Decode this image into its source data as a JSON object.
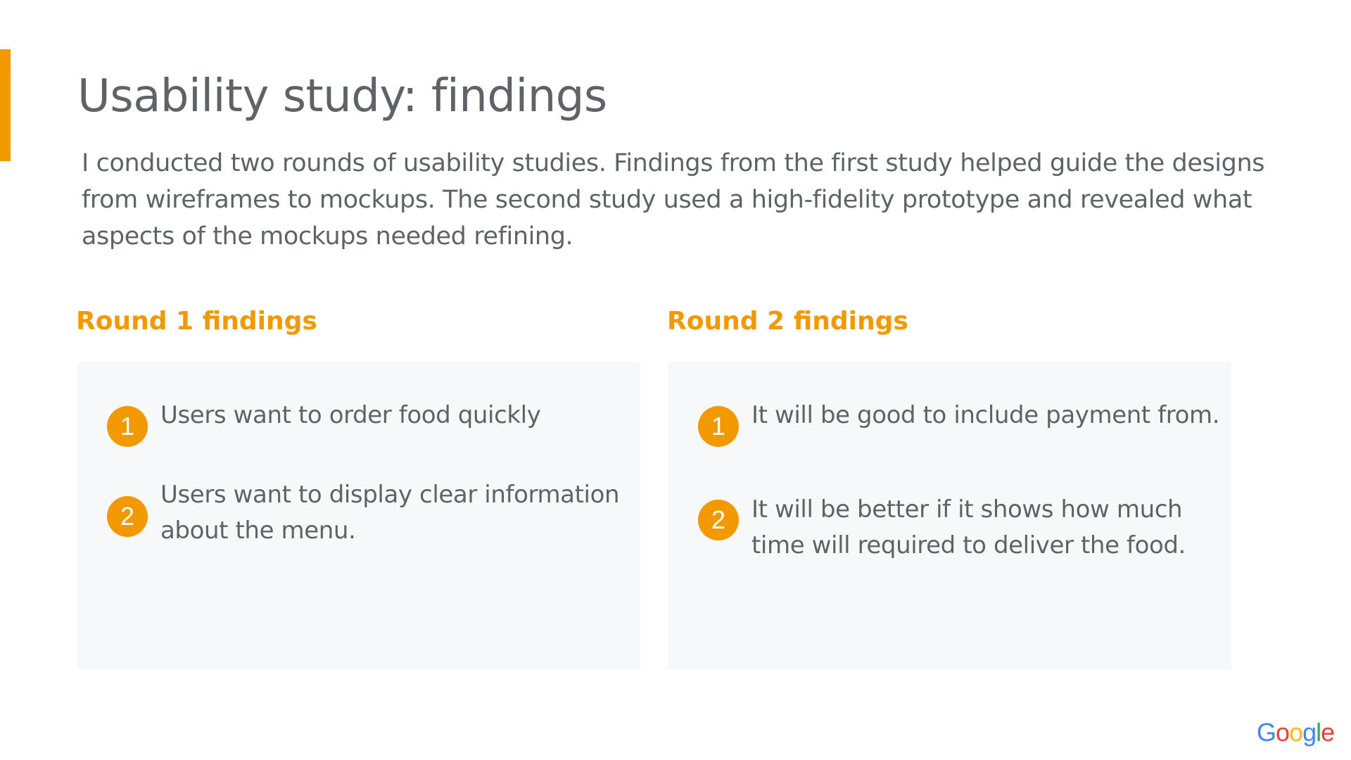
{
  "slide": {
    "title": "Usability study: findings",
    "intro": "I conducted two rounds of usability studies. Findings from the first study helped guide the designs from wireframes to mockups. The second study used a high-fidelity prototype and revealed what aspects of the mockups needed refining."
  },
  "colors": {
    "accent": "#f29900",
    "text": "#5f6368",
    "panel": "#f7f8f9"
  },
  "round1": {
    "heading": "Round 1 findings",
    "findings": [
      {
        "number": "1",
        "text": "Users want to order food quickly"
      },
      {
        "number": "2",
        "text": "Users want to display clear information about the menu."
      }
    ]
  },
  "round2": {
    "heading": "Round 2 findings",
    "findings": [
      {
        "number": "1",
        "text": "It will be good to include payment from."
      },
      {
        "number": "2",
        "text": "It will be better if it shows how much time will required to deliver the food."
      }
    ]
  },
  "logo": {
    "letters": [
      "G",
      "o",
      "o",
      "g",
      "l",
      "e"
    ],
    "colors": [
      "#4285f4",
      "#ea4335",
      "#fbbc05",
      "#4285f4",
      "#34a853",
      "#ea4335"
    ]
  }
}
